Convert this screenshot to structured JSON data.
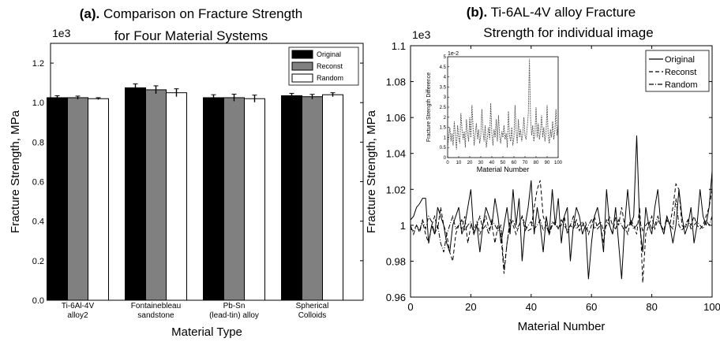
{
  "chart_data": [
    {
      "type": "bar",
      "title_prefix": "(a).",
      "title_line1": "Comparison on Fracture Strength",
      "title_line2": "for Four Material Systems",
      "multiplier": "1e3",
      "xlabel": "Material Type",
      "ylabel": "Fracture Strength, MPa",
      "ylim": [
        0,
        1.3
      ],
      "yticks": [
        "0.0",
        "0.2",
        "0.4",
        "0.6",
        "0.8",
        "1.0",
        "1.2"
      ],
      "categories": [
        [
          "Ti-6Al-4V",
          "alloy2"
        ],
        [
          "Fontainebleau",
          "sandstone"
        ],
        [
          "Pb-Sn",
          "(lead-tin) alloy"
        ],
        [
          "Spherical",
          "Colloids"
        ]
      ],
      "series": [
        {
          "name": "Original",
          "color": "#000000",
          "values": [
            1.025,
            1.075,
            1.025,
            1.035
          ],
          "errors": [
            0.01,
            0.02,
            0.015,
            0.012
          ]
        },
        {
          "name": "Reconst",
          "color": "#808080",
          "values": [
            1.025,
            1.065,
            1.025,
            1.03
          ],
          "errors": [
            0.008,
            0.02,
            0.018,
            0.012
          ]
        },
        {
          "name": "Random",
          "color": "#ffffff",
          "values": [
            1.02,
            1.05,
            1.02,
            1.04
          ],
          "errors": [
            0.005,
            0.02,
            0.018,
            0.01
          ]
        }
      ],
      "legend_position": "top-right"
    },
    {
      "type": "line",
      "title_prefix": "(b).",
      "title_line1": "Ti-6AL-4V alloy Fracture",
      "title_line2": "Strength for individual image",
      "multiplier": "1e3",
      "xlabel": "Material Number",
      "ylabel": "Fracture Strength, MPa",
      "xlim": [
        0,
        100
      ],
      "ylim": [
        0.96,
        1.1
      ],
      "xticks": [
        "0",
        "20",
        "40",
        "60",
        "80",
        "100"
      ],
      "yticks": [
        "0.96",
        "0.98",
        "1",
        "1.02",
        "1.04",
        "1.06",
        "1.08",
        "1.1"
      ],
      "legend_position": "top-right",
      "series": [
        {
          "name": "Original",
          "dash": "",
          "values": [
            1.003,
            1.005,
            1.01,
            1.012,
            1.015,
            1.015,
            0.99,
            1.0,
            0.995,
            1.01,
            1.005,
            1.0,
            0.99,
            0.985,
            1.0,
            1.005,
            1.01,
            0.995,
            1.0,
            1.01,
            1.02,
            0.995,
            1.0,
            0.985,
            1.0,
            1.01,
            1.005,
            1.0,
            1.015,
            1.005,
            0.99,
            1.0,
            1.01,
            0.995,
            1.02,
            1.0,
            1.015,
            0.98,
            1.0,
            1.01,
            1.025,
            0.995,
            1.01,
            1.0,
            0.985,
            1.005,
            0.995,
            1.02,
            1.0,
            1.015,
            0.99,
            1.005,
            1.01,
            0.98,
            1.0,
            1.01,
            1.005,
            0.995,
            1.0,
            0.97,
            0.99,
            1.005,
            1.01,
            1.0,
            0.985,
            1.02,
            1.0,
            0.995,
            1.01,
            0.99,
            0.97,
            1.0,
            1.02,
            1.0,
            1.005,
            1.05,
            1.0,
            0.985,
            1.01,
            1.0,
            0.995,
            1.01,
            1.02,
            1.0,
            0.995,
            1.005,
            1.0,
            0.99,
            1.0,
            1.02,
            1.005,
            0.995,
            1.0,
            1.01,
            0.99,
            1.0,
            1.02,
            1.005,
            1.0,
            1.01,
            1.03
          ]
        },
        {
          "name": "Reconst",
          "dash": "5,3",
          "values": [
            0.998,
            0.997,
            1.0,
            0.996,
            1.002,
            0.995,
            0.99,
            1.0,
            1.005,
            0.998,
            1.01,
            1.0,
            0.995,
            0.985,
            0.98,
            0.995,
            1.0,
            0.998,
            1.005,
            0.99,
            1.0,
            0.997,
            1.002,
            0.995,
            1.0,
            1.005,
            0.998,
            1.0,
            0.99,
            1.0,
            0.995,
            0.973,
            0.99,
            1.003,
            1.0,
            0.995,
            1.0,
            1.005,
            1.0,
            0.997,
            0.998,
            1.01,
            1.02,
            1.025,
            1.005,
            1.0,
            0.995,
            1.0,
            1.002,
            0.998,
            1.0,
            1.005,
            0.995,
            1.0,
            0.998,
            1.003,
            0.997,
            1.0,
            1.002,
            0.995,
            1.0,
            1.005,
            0.998,
            1.0,
            0.99,
            1.003,
            1.0,
            0.995,
            1.005,
            1.0,
            1.01,
            1.0,
            0.995,
            1.003,
            1.0,
            0.995,
            1.01,
            0.968,
            0.995,
            1.0,
            1.005,
            0.998,
            1.003,
            1.0,
            0.997,
            1.005,
            1.0,
            1.01,
            1.023,
            1.02,
            1.0,
            0.998,
            1.003,
            1.0,
            1.005,
            1.0,
            0.998,
            1.0,
            1.005,
            1.01,
            1.02
          ]
        },
        {
          "name": "Random",
          "dash": "6,2,1,2",
          "values": [
            1.0,
            0.995,
            1.0,
            0.997,
            1.003,
            0.998,
            1.005,
            1.002,
            0.995,
            1.0,
            0.99,
            0.985,
            0.995,
            1.0,
            1.005,
            0.998,
            1.0,
            1.003,
            0.997,
            1.0,
            1.002,
            0.995,
            1.0,
            1.005,
            0.998,
            1.0,
            0.995,
            1.003,
            1.0,
            0.997,
            1.0,
            0.975,
            0.99,
            1.0,
            1.003,
            0.998,
            1.0,
            1.005,
            0.997,
            1.0,
            1.002,
            0.998,
            1.0,
            1.003,
            0.997,
            1.0,
            0.995,
            1.002,
            1.0,
            0.998,
            1.003,
            1.0,
            0.997,
            1.0,
            1.005,
            0.998,
            1.0,
            1.002,
            0.997,
            1.0,
            1.003,
            0.998,
            1.0,
            1.002,
            0.997,
            1.0,
            1.005,
            1.0,
            0.998,
            1.003,
            1.0,
            0.997,
            1.0,
            1.002,
            0.998,
            1.0,
            1.003,
            0.997,
            1.0,
            1.002,
            0.998,
            1.0,
            1.005,
            1.0,
            0.997,
            1.003,
            1.0,
            0.998,
            1.015,
            1.0,
            0.997,
            1.0,
            1.003,
            0.998,
            1.0,
            1.002,
            1.0,
            0.998,
            1.003,
            1.0,
            1.005
          ]
        }
      ],
      "inset": {
        "ylabel": "Fracture Strength Difference",
        "xlabel": "Material Number",
        "multiplier": "1e-2",
        "xlim": [
          0,
          100
        ],
        "ylim": [
          0,
          5
        ],
        "xticks": [
          "0",
          "10",
          "20",
          "30",
          "40",
          "50",
          "60",
          "70",
          "80",
          "90",
          "100"
        ],
        "yticks": [
          "0",
          "0.5",
          "1",
          "1.5",
          "2",
          "2.5",
          "3",
          "3.5",
          "4",
          "4.5",
          "5"
        ],
        "values": [
          0.5,
          1.0,
          1.5,
          0.8,
          1.2,
          0.6,
          1.8,
          1.1,
          0.4,
          1.6,
          1.0,
          0.7,
          2.2,
          1.4,
          0.9,
          1.3,
          0.5,
          1.9,
          1.2,
          0.8,
          2.0,
          1.0,
          2.6,
          1.5,
          0.6,
          1.2,
          1.7,
          0.9,
          1.4,
          0.7,
          1.1,
          2.4,
          1.3,
          0.8,
          1.6,
          0.5,
          1.0,
          1.5,
          0.9,
          2.7,
          1.2,
          0.6,
          1.4,
          1.0,
          1.9,
          0.8,
          2.1,
          1.1,
          0.7,
          1.3,
          1.0,
          1.6,
          0.9,
          1.2,
          0.5,
          2.3,
          1.1,
          0.8,
          1.5,
          0.6,
          1.0,
          2.6,
          1.3,
          0.7,
          1.9,
          1.0,
          1.4,
          0.8,
          1.2,
          2.0,
          1.1,
          0.9,
          1.5,
          2.2,
          4.9,
          2.0,
          1.1,
          1.6,
          0.8,
          1.2,
          2.5,
          1.0,
          1.7,
          0.9,
          1.3,
          2.1,
          1.0,
          1.5,
          0.8,
          1.2,
          2.6,
          1.1,
          0.7,
          1.4,
          1.0,
          1.8,
          0.9,
          1.3,
          2.4,
          1.1,
          1.7
        ]
      }
    }
  ]
}
